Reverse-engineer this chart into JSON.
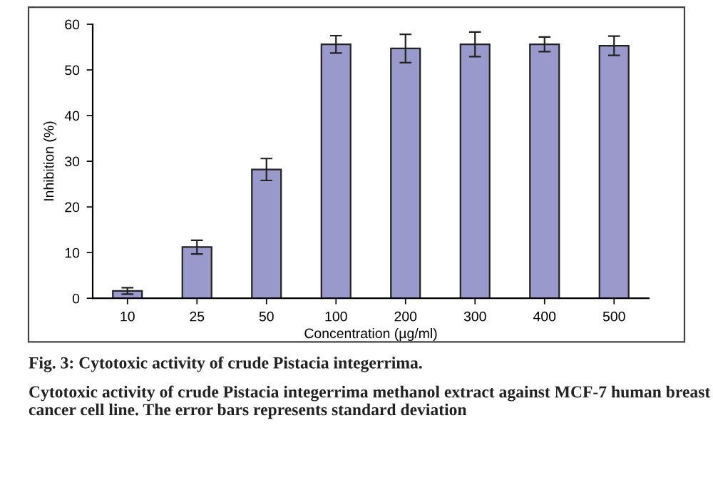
{
  "chart_data": {
    "type": "bar",
    "xlabel": "Concentration (µg/ml)",
    "ylabel": "Inhibition (%)",
    "categories": [
      "10",
      "25",
      "50",
      "100",
      "200",
      "300",
      "400",
      "500"
    ],
    "values": [
      1.6,
      11.2,
      28.2,
      55.6,
      54.7,
      55.6,
      55.6,
      55.3
    ],
    "errors": [
      0.7,
      1.5,
      2.4,
      1.9,
      3.1,
      2.7,
      1.6,
      2.1
    ],
    "color": "#9999cc",
    "ylim": [
      0,
      60
    ],
    "yticks": [
      0,
      10,
      20,
      30,
      40,
      50,
      60
    ],
    "grid": false,
    "annotations": [
      "Fig. 3: Cytotoxic activity of crude Pistacia integerrima.",
      "Cytotoxic activity of crude Pistacia integerrima methanol extract against MCF-7 human breast cancer cell line. The error bars represents standard deviation"
    ]
  }
}
